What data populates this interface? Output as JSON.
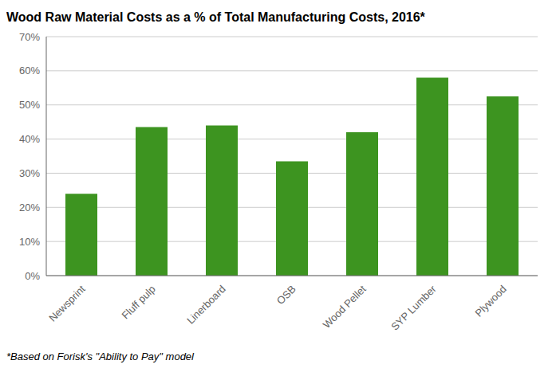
{
  "chart_data": {
    "type": "bar",
    "title": "Wood Raw Material Costs as a % of Total Manufacturing Costs, 2016*",
    "footnote": "*Based on Forisk's \"Ability to Pay\" model",
    "categories": [
      "Newsprint",
      "Fluff pulp",
      "Linerboard",
      "OSB",
      "Wood Pellet",
      "SYP Lumber",
      "Plywood"
    ],
    "values": [
      24.0,
      43.5,
      44.0,
      33.5,
      42.0,
      58.0,
      52.5
    ],
    "color": "#3d9420",
    "ylim": [
      0,
      70
    ],
    "yticks": [
      {
        "value": 0,
        "label": "0%"
      },
      {
        "value": 10,
        "label": "10%"
      },
      {
        "value": 20,
        "label": "20%"
      },
      {
        "value": 30,
        "label": "30%"
      },
      {
        "value": 40,
        "label": "40%"
      },
      {
        "value": 50,
        "label": "50%"
      },
      {
        "value": 60,
        "label": "60%"
      },
      {
        "value": 70,
        "label": "70%"
      }
    ],
    "grid": true
  }
}
